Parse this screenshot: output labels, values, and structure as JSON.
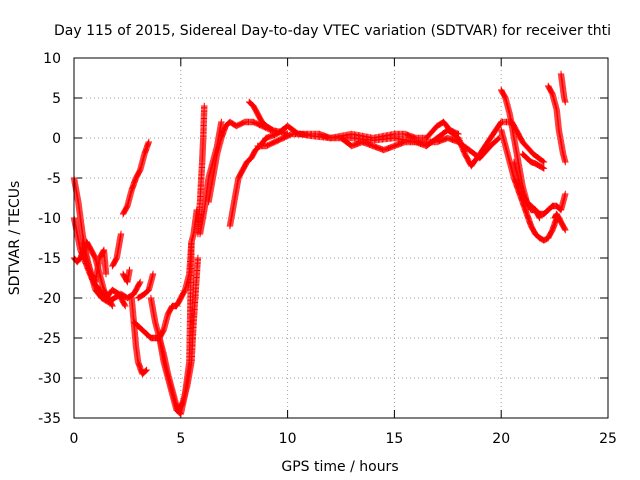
{
  "chart_data": {
    "type": "scatter",
    "title": "Day 115 of 2015, Sidereal Day-to-day VTEC variation (SDTVAR) for receiver thti",
    "xlabel": "GPS time / hours",
    "ylabel": "SDTVAR / TECUs",
    "xlim": [
      0,
      25
    ],
    "ylim": [
      -35,
      10
    ],
    "xticks": [
      0,
      5,
      10,
      15,
      20,
      25
    ],
    "yticks": [
      -35,
      -30,
      -25,
      -20,
      -15,
      -10,
      -5,
      0,
      5,
      10
    ],
    "x_tick_labels": [
      "0",
      "5",
      "10",
      "15",
      "20",
      "25"
    ],
    "y_tick_labels": [
      "-35",
      "-30",
      "-25",
      "-20",
      "-15",
      "-10",
      "-5",
      "0",
      "5",
      "10"
    ],
    "grid": true,
    "marker": "+",
    "color": "#ff0000",
    "series": [
      {
        "x": [
          0.0,
          0.3,
          0.6,
          0.9,
          1.2,
          1.5,
          1.8,
          2.1,
          2.4
        ],
        "y": [
          -10,
          -14,
          -16,
          -18,
          -19,
          -20,
          -19,
          -19.5,
          -21
        ]
      },
      {
        "x": [
          0.0,
          0.2,
          0.4,
          0.6,
          0.8,
          1.0,
          1.3,
          1.6,
          1.9,
          2.2,
          2.5,
          2.8,
          3.1
        ],
        "y": [
          -5,
          -8,
          -12,
          -15,
          -17,
          -19,
          -20,
          -20.5,
          -20,
          -19.5,
          -20,
          -19.5,
          -18
        ]
      },
      {
        "x": [
          0.0,
          0.15,
          0.3,
          0.45,
          0.6,
          0.8,
          1.0,
          1.2,
          1.4,
          1.6,
          1.8
        ],
        "y": [
          -15,
          -15.5,
          -15,
          -14,
          -13,
          -14,
          -15,
          -17,
          -19,
          -20,
          -21
        ]
      },
      {
        "x": [
          0.4,
          0.6,
          0.8,
          1.0,
          1.2,
          1.4,
          1.5
        ],
        "y": [
          -13,
          -15,
          -17,
          -18,
          -15,
          -14,
          -17
        ]
      },
      {
        "x": [
          1.8,
          2.0,
          2.2
        ],
        "y": [
          -16,
          -15,
          -12
        ]
      },
      {
        "x": [
          2.3,
          2.5,
          2.6
        ],
        "y": [
          -17,
          -18,
          -16.5
        ]
      },
      {
        "x": [
          2.3,
          2.5,
          2.7,
          2.9,
          3.1,
          3.3,
          3.5
        ],
        "y": [
          -9.5,
          -8.5,
          -6.5,
          -5,
          -4,
          -2,
          -0.5
        ]
      },
      {
        "x": [
          2.7,
          2.8,
          2.9,
          3.0,
          3.2,
          3.4
        ],
        "y": [
          -20,
          -23,
          -26,
          -28,
          -29.5,
          -29
        ]
      },
      {
        "x": [
          2.8,
          3.0,
          3.2,
          3.4,
          3.6,
          3.8,
          4.0,
          4.2,
          4.4,
          4.6,
          4.8,
          5.0,
          5.2,
          5.4,
          5.5,
          5.6,
          5.75
        ],
        "y": [
          -23,
          -23.5,
          -24,
          -24.5,
          -25,
          -25,
          -25,
          -24,
          -22,
          -21,
          -21,
          -20,
          -19,
          -17,
          -13,
          -12,
          -9
        ]
      },
      {
        "x": [
          3.0,
          3.3,
          3.5,
          3.7
        ],
        "y": [
          -20,
          -19.5,
          -19,
          -17
        ]
      },
      {
        "x": [
          3.6,
          3.8,
          4.0,
          4.2,
          4.4,
          4.6,
          4.8,
          4.9,
          5.1,
          5.3,
          5.5,
          5.6,
          5.8
        ],
        "y": [
          -20,
          -23,
          -25,
          -27,
          -29.5,
          -31.5,
          -33.5,
          -34,
          -33,
          -31,
          -28,
          -23,
          -15
        ]
      },
      {
        "x": [
          4.0,
          4.2,
          4.4,
          4.6,
          4.8,
          5.0,
          5.2,
          5.4,
          5.5
        ],
        "y": [
          -25,
          -28,
          -30,
          -32,
          -34,
          -34.5,
          -32,
          -28,
          -13
        ]
      },
      {
        "x": [
          5.8,
          5.9,
          6.0,
          6.05,
          6.1
        ],
        "y": [
          -12,
          -8,
          -3,
          0,
          4
        ]
      },
      {
        "x": [
          5.9,
          6.1,
          6.3,
          6.5,
          6.7,
          6.9
        ],
        "y": [
          -12,
          -9,
          -5,
          -3,
          -1,
          2
        ]
      },
      {
        "x": [
          6.3,
          6.5,
          6.7,
          6.9,
          7.1,
          7.3,
          7.6,
          8.0,
          8.4,
          8.8,
          9.2,
          9.6,
          10.0
        ],
        "y": [
          -8,
          -5,
          -2,
          0,
          1.5,
          2,
          1.5,
          2,
          2,
          1.5,
          1,
          0.8,
          0.5
        ]
      },
      {
        "x": [
          7.3,
          7.5,
          7.7,
          7.9,
          8.1,
          8.3,
          8.5,
          8.7,
          9.0
        ],
        "y": [
          -11,
          -8,
          -5,
          -4,
          -3,
          -2.5,
          -1.5,
          -1,
          0
        ]
      },
      {
        "x": [
          8.2,
          8.4,
          8.6,
          8.8,
          9.0,
          9.3
        ],
        "y": [
          4.5,
          4,
          3,
          2,
          1.5,
          1
        ]
      },
      {
        "x": [
          8.6,
          9.0,
          9.4,
          9.8,
          10.2,
          10.6,
          11.0,
          12.0,
          13.0,
          14.0,
          15.0,
          16.0,
          17.0,
          17.5,
          18.0,
          18.5,
          19.0,
          19.5,
          19.9
        ],
        "y": [
          -1,
          -1,
          -0.5,
          0,
          0.5,
          0.5,
          0.3,
          0,
          0,
          -0.3,
          0,
          -0.5,
          -0.5,
          0,
          -0.5,
          -1.5,
          -2.5,
          -1,
          0
        ]
      },
      {
        "x": [
          9.0,
          9.5,
          10.0,
          10.5,
          11.0,
          11.5,
          12.0,
          13.0,
          14.0,
          15.0,
          15.5,
          16.0,
          16.5,
          17.0,
          17.3,
          17.6,
          18.0
        ],
        "y": [
          0,
          0.5,
          1.5,
          0.5,
          0.5,
          0.5,
          0,
          0.5,
          0,
          0.5,
          0.5,
          0,
          0,
          1.5,
          2,
          1,
          0.5
        ]
      },
      {
        "x": [
          12.5,
          13.0,
          13.5,
          14.0,
          14.5,
          15.0,
          15.5,
          16.0,
          16.5,
          17.0,
          17.5,
          18.0,
          18.3,
          18.6,
          19.0,
          19.5,
          20.0,
          20.5,
          21.0,
          21.5,
          22.0
        ],
        "y": [
          0,
          -1,
          -0.5,
          -1,
          -1.5,
          -1,
          -0.5,
          -0.5,
          -1,
          0,
          1,
          0,
          -2,
          -3.5,
          -2,
          0,
          2,
          2,
          -0.5,
          -2,
          -3
        ]
      },
      {
        "x": [
          20.0,
          20.2,
          20.4,
          20.6,
          20.8,
          21.0,
          21.2,
          21.4,
          21.6,
          21.8
        ],
        "y": [
          6,
          5,
          3,
          0,
          -3,
          -6,
          -8,
          -9,
          -9,
          -10
        ]
      },
      {
        "x": [
          20.0,
          20.2,
          20.4,
          20.6,
          20.8,
          21.0,
          21.2,
          21.4,
          21.6,
          21.8,
          22.0,
          22.2,
          22.4,
          22.6
        ],
        "y": [
          1,
          -1,
          -3,
          -5,
          -6.5,
          -8,
          -9.5,
          -11,
          -12,
          -12.5,
          -12.8,
          -12.5,
          -11.5,
          -10
        ]
      },
      {
        "x": [
          20.6,
          20.8,
          21.0,
          21.2,
          21.4,
          21.6,
          21.8,
          22.0,
          22.2,
          22.4,
          22.6,
          22.8,
          23.0
        ],
        "y": [
          -3,
          -5,
          -7,
          -8,
          -8.5,
          -9,
          -9.5,
          -9.5,
          -9,
          -8.5,
          -8.5,
          -9,
          -7
        ]
      },
      {
        "x": [
          21.0,
          21.2,
          21.4,
          21.6,
          21.8,
          22.0
        ],
        "y": [
          -2,
          -2.5,
          -3,
          -3.2,
          -3.5,
          -3.8
        ]
      },
      {
        "x": [
          22.5,
          22.6,
          22.8,
          23.0
        ],
        "y": [
          -10,
          -9.5,
          -10.5,
          -11.5
        ]
      },
      {
        "x": [
          22.2,
          22.4,
          22.6,
          22.7,
          22.8,
          22.9,
          23.0
        ],
        "y": [
          6.5,
          5.5,
          3.5,
          1,
          -0.5,
          -2,
          -3
        ]
      },
      {
        "x": [
          22.8,
          22.85,
          22.9,
          22.95,
          23.0
        ],
        "y": [
          8,
          7,
          6,
          5,
          4.5
        ]
      }
    ]
  }
}
